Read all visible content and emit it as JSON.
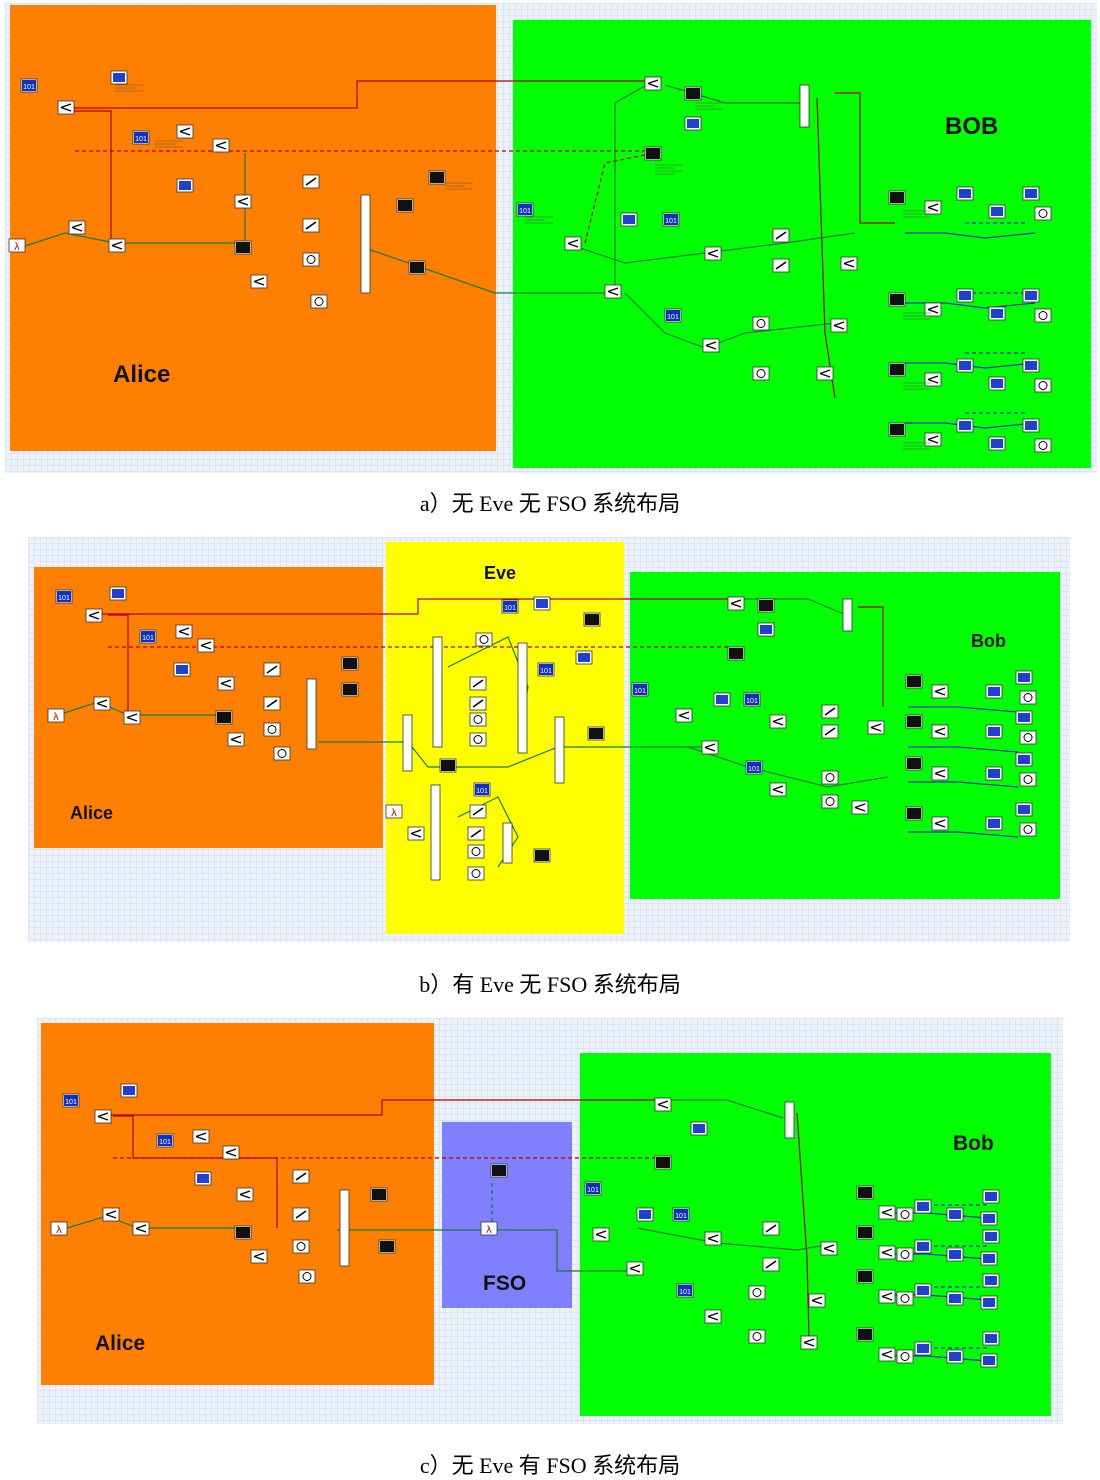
{
  "figures": [
    {
      "caption": "a）无 Eve 无 FSO 系统布局",
      "regions": [
        {
          "label": "Alice",
          "color": "#ff8000"
        },
        {
          "label": "BOB",
          "color": "#00ff00"
        }
      ]
    },
    {
      "caption": "b）有 Eve 无 FSO 系统布局",
      "regions": [
        {
          "label": "Alice",
          "color": "#ff8000"
        },
        {
          "label": "Eve",
          "color": "#ffff00"
        },
        {
          "label": "Bob",
          "color": "#00ff00"
        }
      ]
    },
    {
      "caption": "c）无 Eve 有 FSO 系统布局",
      "regions": [
        {
          "label": "Alice",
          "color": "#ff8000"
        },
        {
          "label": "FSO",
          "color": "#8080ff"
        },
        {
          "label": "Bob",
          "color": "#00ff00"
        }
      ]
    }
  ],
  "icons": {
    "bit_source": "101",
    "optical_source": "λ"
  }
}
